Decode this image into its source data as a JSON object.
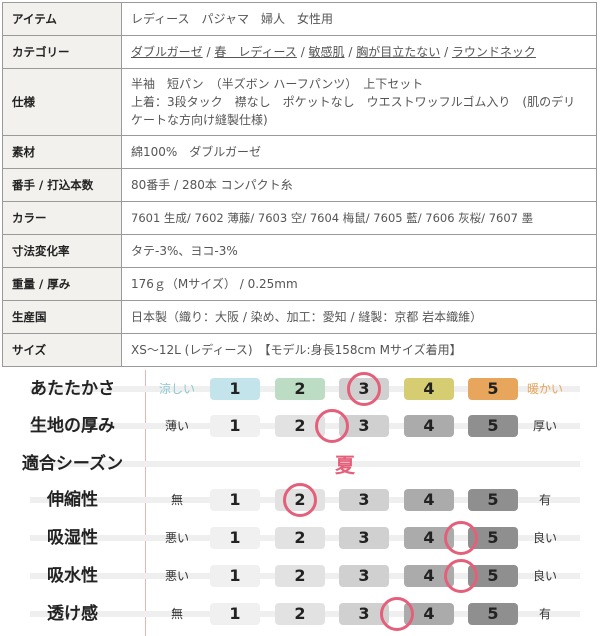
{
  "spec_table": {
    "item": {
      "label": "アイテム",
      "value": "レディース　パジャマ　婦人　女性用"
    },
    "category": {
      "label": "カテゴリー",
      "links": [
        "ダブルガーゼ",
        "春　レディース",
        "敏感肌",
        "胸が目立たない",
        "ラウンドネック"
      ],
      "separator": " / "
    },
    "spec": {
      "label": "仕様",
      "lines": [
        "半袖　短パン　（半ズボン ハーフパンツ）　上下セット",
        "上着：3段タック　襟なし　ポケットなし　ウエストワッフルゴム入り　(肌のデリケートな方向け縫製仕様)"
      ]
    },
    "material": {
      "label": "素材",
      "value": "綿100%　ダブルガーゼ"
    },
    "yarn": {
      "label": "番手 / 打込本数",
      "value": "80番手 / 280本 コンパクト糸"
    },
    "color": {
      "label": "カラー",
      "value": "7601 生成/ 7602 薄藤/ 7603 空/ 7604 梅鼠/ 7605 藍/ 7606 灰桜/ 7607 墨"
    },
    "shrink": {
      "label": "寸法変化率",
      "value": "タテ-3%、ヨコ-3%"
    },
    "weight": {
      "label": "重量 / 厚み",
      "value": "176ｇ（Mサイズ） / 0.25mm"
    },
    "origin": {
      "label": "生産国",
      "value": "日本製（織り：大阪 / 染め、加工：愛知 / 縫製：京都 岩本織維）"
    },
    "size": {
      "label": "サイズ",
      "value": "XS～12L (レディース)　【モデル:身長158cm Mサイズ着用】"
    }
  },
  "ratings": {
    "scale": [
      "1",
      "2",
      "3",
      "4",
      "5"
    ],
    "gray_colors": [
      "#f0f0f0",
      "#e2e2e2",
      "#d0d0d0",
      "#ababab",
      "#8f8f8f"
    ],
    "warm_colors": [
      "#c3e4ea",
      "#bcdcc3",
      "#d0d0d0",
      "#d6cd72",
      "#e8a65c"
    ],
    "circle_color": "#e4607a",
    "rows": [
      {
        "label": "あたたかさ",
        "left": "涼しい",
        "right": "暖かい",
        "left_color": "#8cc8d2",
        "right_color": "#e8a65c",
        "value": 3,
        "palette": "warm"
      },
      {
        "label": "生地の厚み",
        "left": "薄い",
        "right": "厚い",
        "value": 2.5,
        "palette": "gray"
      },
      {
        "label": "適合シーズン",
        "season": "夏"
      },
      {
        "label": "伸縮性",
        "left": "無",
        "right": "有",
        "value": 2,
        "palette": "gray"
      },
      {
        "label": "吸湿性",
        "left": "悪い",
        "right": "良い",
        "value": 4.5,
        "palette": "gray"
      },
      {
        "label": "吸水性",
        "left": "悪い",
        "right": "良い",
        "value": 4.5,
        "palette": "gray"
      },
      {
        "label": "透け感",
        "left": "無",
        "right": "有",
        "value": 3.5,
        "palette": "gray"
      }
    ]
  }
}
